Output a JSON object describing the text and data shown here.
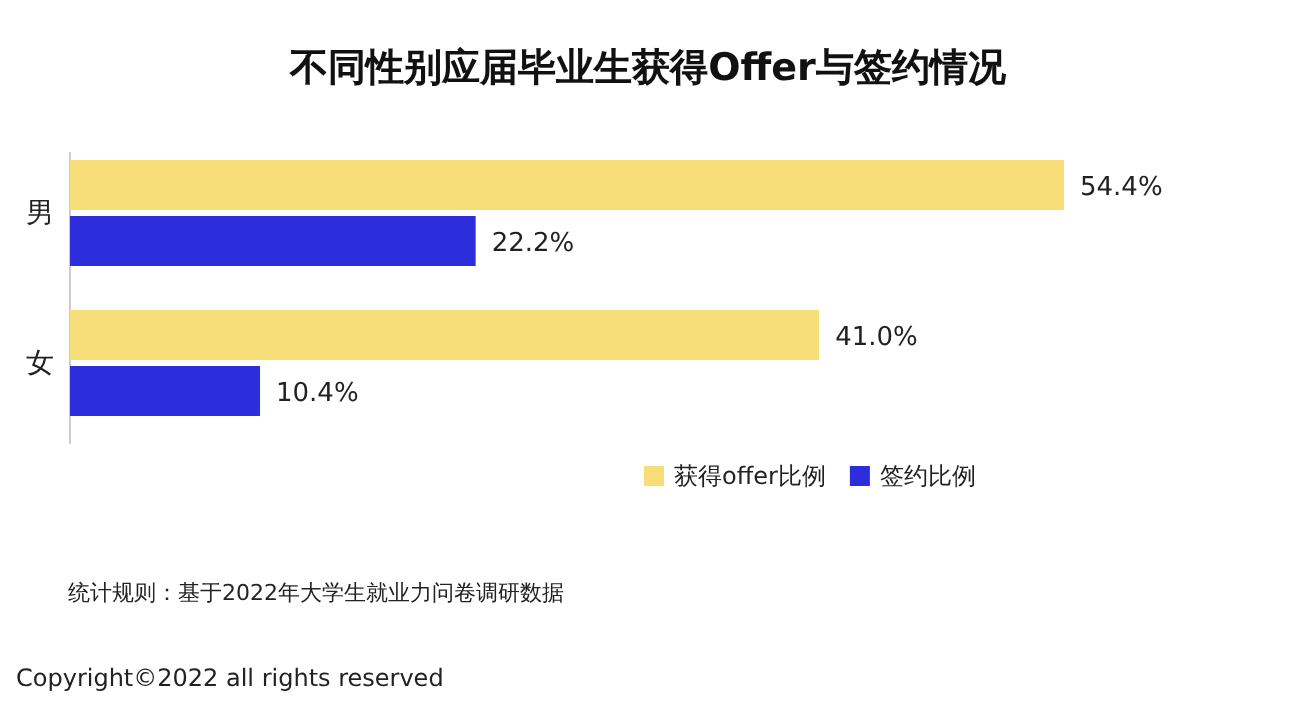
{
  "chart_data": {
    "type": "bar",
    "orientation": "horizontal",
    "title": "不同性别应届毕业生获得Offer与签约情况",
    "categories": [
      "男",
      "女"
    ],
    "series": [
      {
        "name": "获得offer比例",
        "color": "#f7de79",
        "values": [
          54.4,
          41.0
        ],
        "value_labels": [
          "54.4%",
          "41.0%"
        ]
      },
      {
        "name": "签约比例",
        "color": "#2d2ddb",
        "values": [
          22.2,
          10.4
        ],
        "value_labels": [
          "22.2%",
          "10.4%"
        ]
      }
    ],
    "legend": "bottom",
    "annotations": [
      "统计规则：基于2022年大学生就业力问卷调研数据",
      "Copyright©2022 all rights reserved"
    ]
  }
}
